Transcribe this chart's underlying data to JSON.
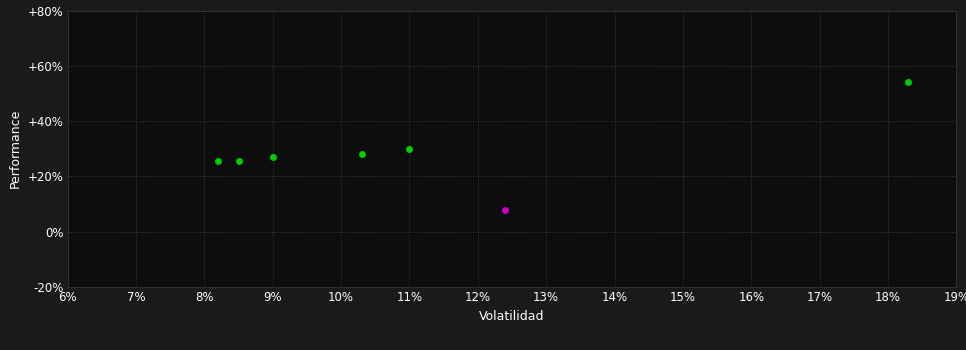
{
  "background_color": "#1a1a1a",
  "plot_bg_color": "#0d0d0d",
  "grid_color": "#3a3a3a",
  "text_color": "#ffffff",
  "xlabel": "Volatilidad",
  "ylabel": "Performance",
  "xlim": [
    0.06,
    0.19
  ],
  "ylim": [
    -0.2,
    0.8
  ],
  "xticks": [
    0.06,
    0.07,
    0.08,
    0.09,
    0.1,
    0.11,
    0.12,
    0.13,
    0.14,
    0.15,
    0.16,
    0.17,
    0.18,
    0.19
  ],
  "yticks": [
    -0.2,
    0.0,
    0.2,
    0.4,
    0.6,
    0.8
  ],
  "ytick_labels": [
    "-20%",
    "0%",
    "+20%",
    "+40%",
    "+60%",
    "+80%"
  ],
  "green_points": [
    [
      0.082,
      0.255
    ],
    [
      0.085,
      0.255
    ],
    [
      0.09,
      0.27
    ],
    [
      0.103,
      0.28
    ],
    [
      0.11,
      0.3
    ],
    [
      0.183,
      0.54
    ]
  ],
  "magenta_points": [
    [
      0.124,
      0.08
    ]
  ],
  "green_color": "#00cc00",
  "magenta_color": "#cc00cc",
  "marker_size": 25,
  "label_fontsize": 9,
  "tick_fontsize": 8.5,
  "figsize": [
    9.66,
    3.5
  ],
  "dpi": 100
}
